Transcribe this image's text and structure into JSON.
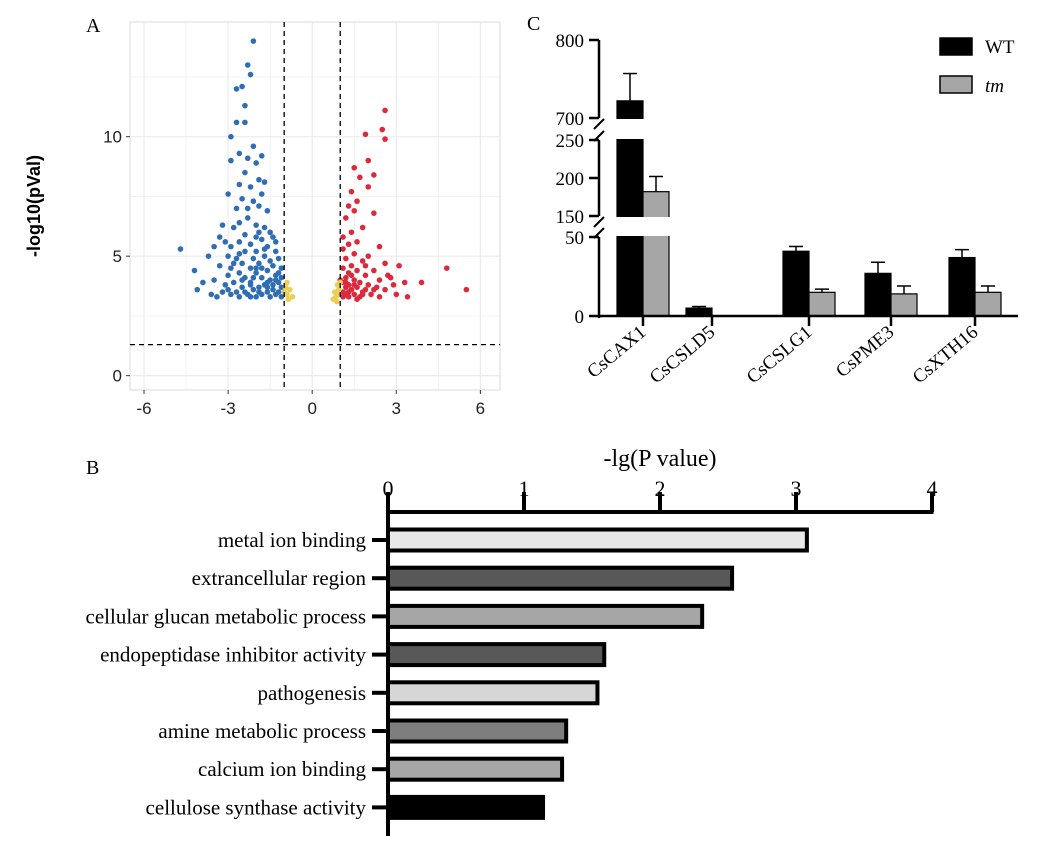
{
  "chart_data": [
    {
      "panel": "A",
      "type": "scatter",
      "panel_label": "A",
      "title": "",
      "xlabel": "",
      "ylabel": "-log10(pVal)",
      "xlim": [
        -6.5,
        6.7
      ],
      "ylim": [
        -0.6,
        14.8
      ],
      "xticks": [
        -6,
        -3,
        0,
        3,
        6
      ],
      "yticks": [
        0,
        5,
        10
      ],
      "grid": true,
      "thresholds": {
        "x": [
          -1,
          1
        ],
        "y": [
          1.3
        ]
      },
      "colors": {
        "down": "#2f6eb4",
        "up": "#dc2a3c",
        "ns": "#e9cf56"
      },
      "series": [
        {
          "name": "down",
          "points": [
            [
              -2.1,
              14.0
            ],
            [
              -2.3,
              13.0
            ],
            [
              -2.2,
              12.6
            ],
            [
              -2.5,
              12.1
            ],
            [
              -2.7,
              12.0
            ],
            [
              -2.4,
              11.3
            ],
            [
              -2.7,
              10.6
            ],
            [
              -2.4,
              10.6
            ],
            [
              -2.9,
              10.0
            ],
            [
              -2.1,
              9.6
            ],
            [
              -2.6,
              9.3
            ],
            [
              -2.3,
              9.1
            ],
            [
              -1.8,
              9.2
            ],
            [
              -2.9,
              9.0
            ],
            [
              -2.0,
              8.9
            ],
            [
              -2.4,
              8.5
            ],
            [
              -1.9,
              8.2
            ],
            [
              -2.6,
              8.0
            ],
            [
              -2.2,
              7.9
            ],
            [
              -1.7,
              8.1
            ],
            [
              -3.0,
              7.6
            ],
            [
              -2.5,
              7.4
            ],
            [
              -2.1,
              7.3
            ],
            [
              -1.8,
              7.6
            ],
            [
              -2.7,
              7.0
            ],
            [
              -2.3,
              7.0
            ],
            [
              -1.9,
              7.1
            ],
            [
              -1.6,
              6.9
            ],
            [
              -2.6,
              6.4
            ],
            [
              -2.0,
              6.3
            ],
            [
              -1.7,
              6.2
            ],
            [
              -3.2,
              6.3
            ],
            [
              -2.8,
              6.2
            ],
            [
              -1.5,
              6.0
            ],
            [
              -2.4,
              5.9
            ],
            [
              -2.0,
              5.8
            ],
            [
              -1.8,
              5.7
            ],
            [
              -1.4,
              5.8
            ],
            [
              -3.1,
              5.6
            ],
            [
              -2.6,
              5.6
            ],
            [
              -2.2,
              5.5
            ],
            [
              -1.6,
              5.4
            ],
            [
              -3.5,
              5.4
            ],
            [
              -2.9,
              5.4
            ],
            [
              -4.7,
              5.3
            ],
            [
              -2.4,
              5.2
            ],
            [
              -2.0,
              5.2
            ],
            [
              -1.3,
              5.2
            ],
            [
              -3.7,
              5.0
            ],
            [
              -3.0,
              5.0
            ],
            [
              -2.7,
              4.9
            ],
            [
              -2.1,
              4.9
            ],
            [
              -1.7,
              5.0
            ],
            [
              -1.2,
              4.9
            ],
            [
              -2.5,
              4.7
            ],
            [
              -1.9,
              4.7
            ],
            [
              -1.4,
              4.6
            ],
            [
              -3.3,
              4.6
            ],
            [
              -2.9,
              4.5
            ],
            [
              -2.2,
              4.5
            ],
            [
              -1.6,
              4.4
            ],
            [
              -1.1,
              4.5
            ],
            [
              -4.2,
              4.4
            ],
            [
              -2.6,
              4.3
            ],
            [
              -2.0,
              4.3
            ],
            [
              -1.3,
              4.2
            ],
            [
              -3.0,
              4.2
            ],
            [
              -1.8,
              4.1
            ],
            [
              -2.4,
              4.1
            ],
            [
              -1.5,
              4.0
            ],
            [
              -3.5,
              4.0
            ],
            [
              -2.8,
              3.9
            ],
            [
              -2.2,
              3.9
            ],
            [
              -1.2,
              3.9
            ],
            [
              -3.1,
              3.8
            ],
            [
              -1.7,
              3.8
            ],
            [
              -2.5,
              3.7
            ],
            [
              -1.9,
              3.7
            ],
            [
              -3.9,
              3.9
            ],
            [
              -2.1,
              3.6
            ],
            [
              -1.4,
              3.6
            ],
            [
              -2.7,
              3.5
            ],
            [
              -1.6,
              3.5
            ],
            [
              -3.2,
              3.5
            ],
            [
              -1.3,
              3.4
            ],
            [
              -4.1,
              3.6
            ],
            [
              -2.3,
              3.4
            ],
            [
              -1.8,
              3.4
            ],
            [
              -2.9,
              3.4
            ],
            [
              -3.6,
              3.4
            ],
            [
              -2.0,
              3.3
            ],
            [
              -1.5,
              3.3
            ],
            [
              -3.4,
              3.3
            ],
            [
              -2.6,
              3.3
            ],
            [
              -1.1,
              3.3
            ],
            [
              -2.2,
              3.8
            ],
            [
              -1.6,
              3.9
            ],
            [
              -2.8,
              4.7
            ],
            [
              -3.3,
              5.8
            ],
            [
              -2.3,
              6.6
            ],
            [
              -1.9,
              6.0
            ],
            [
              -1.3,
              5.6
            ],
            [
              -1.5,
              4.8
            ],
            [
              -1.2,
              4.3
            ],
            [
              -1.1,
              3.7
            ],
            [
              -2.4,
              3.5
            ],
            [
              -2.0,
              4.5
            ],
            [
              -2.6,
              5.1
            ],
            [
              -1.7,
              5.3
            ],
            [
              -1.4,
              3.8
            ],
            [
              -2.1,
              4.1
            ],
            [
              -1.9,
              3.5
            ],
            [
              -2.5,
              4.0
            ],
            [
              -1.2,
              3.5
            ],
            [
              -1.8,
              4.5
            ],
            [
              -3.0,
              3.6
            ],
            [
              -2.2,
              3.3
            ],
            [
              -1.6,
              3.7
            ],
            [
              -1.3,
              4.0
            ],
            [
              -1.1,
              4.1
            ]
          ]
        },
        {
          "name": "up",
          "points": [
            [
              2.6,
              11.1
            ],
            [
              2.5,
              10.3
            ],
            [
              2.6,
              9.9
            ],
            [
              1.9,
              10.1
            ],
            [
              2.0,
              9.0
            ],
            [
              1.5,
              8.7
            ],
            [
              1.7,
              8.3
            ],
            [
              2.2,
              8.4
            ],
            [
              2.0,
              7.9
            ],
            [
              1.4,
              7.7
            ],
            [
              1.6,
              7.3
            ],
            [
              1.3,
              7.1
            ],
            [
              1.5,
              6.9
            ],
            [
              2.2,
              6.8
            ],
            [
              1.2,
              6.6
            ],
            [
              1.8,
              6.2
            ],
            [
              1.4,
              6.0
            ],
            [
              1.1,
              5.8
            ],
            [
              1.6,
              5.6
            ],
            [
              1.3,
              5.5
            ],
            [
              2.4,
              5.4
            ],
            [
              1.1,
              5.3
            ],
            [
              1.5,
              5.1
            ],
            [
              2.0,
              5.0
            ],
            [
              1.2,
              4.9
            ],
            [
              1.8,
              4.8
            ],
            [
              2.6,
              4.7
            ],
            [
              1.4,
              4.6
            ],
            [
              3.1,
              4.6
            ],
            [
              1.1,
              4.5
            ],
            [
              1.6,
              4.4
            ],
            [
              2.2,
              4.4
            ],
            [
              1.3,
              4.3
            ],
            [
              1.9,
              4.2
            ],
            [
              2.7,
              4.2
            ],
            [
              1.2,
              4.1
            ],
            [
              1.5,
              4.0
            ],
            [
              2.4,
              4.0
            ],
            [
              1.1,
              3.9
            ],
            [
              1.7,
              3.9
            ],
            [
              3.3,
              3.9
            ],
            [
              3.9,
              3.9
            ],
            [
              1.3,
              3.8
            ],
            [
              2.0,
              3.8
            ],
            [
              2.9,
              3.8
            ],
            [
              1.2,
              3.7
            ],
            [
              1.6,
              3.7
            ],
            [
              2.3,
              3.7
            ],
            [
              1.4,
              3.6
            ],
            [
              1.9,
              3.6
            ],
            [
              2.6,
              3.6
            ],
            [
              1.1,
              3.5
            ],
            [
              1.8,
              3.5
            ],
            [
              1.2,
              3.4
            ],
            [
              1.5,
              3.4
            ],
            [
              2.1,
              3.4
            ],
            [
              3.0,
              3.4
            ],
            [
              1.3,
              3.3
            ],
            [
              1.7,
              3.3
            ],
            [
              2.4,
              3.3
            ],
            [
              1.1,
              3.3
            ],
            [
              1.6,
              3.2
            ],
            [
              3.4,
              3.3
            ],
            [
              4.8,
              4.5
            ],
            [
              5.5,
              3.6
            ],
            [
              1.4,
              4.2
            ],
            [
              1.2,
              3.9
            ],
            [
              1.9,
              4.6
            ],
            [
              1.0,
              4.0
            ],
            [
              1.5,
              3.8
            ],
            [
              2.2,
              3.6
            ],
            [
              1.3,
              3.5
            ],
            [
              1.8,
              3.4
            ],
            [
              2.8,
              4.1
            ]
          ]
        },
        {
          "name": "ns",
          "points": [
            [
              -0.9,
              3.9
            ],
            [
              -0.8,
              3.6
            ],
            [
              -0.9,
              3.4
            ],
            [
              -0.7,
              3.3
            ],
            [
              -0.85,
              3.2
            ],
            [
              -1.0,
              3.5
            ],
            [
              -0.95,
              3.7
            ],
            [
              0.9,
              3.8
            ],
            [
              0.8,
              3.5
            ],
            [
              0.85,
              3.3
            ],
            [
              0.95,
              3.6
            ],
            [
              0.75,
              3.2
            ],
            [
              0.9,
              3.4
            ],
            [
              1.0,
              3.9
            ],
            [
              0.88,
              3.1
            ]
          ]
        }
      ]
    },
    {
      "panel": "B",
      "type": "bar",
      "orientation": "horizontal",
      "panel_label": "B",
      "title": "",
      "xlabel": "-lg(P value)",
      "xlim": [
        0,
        4
      ],
      "xticks": [
        "0",
        "1",
        "2",
        "3",
        "4"
      ],
      "categories": [
        "metal ion binding",
        "extrancellular region",
        "cellular glucan metabolic process",
        "endopeptidase inhibitor activity",
        "pathogenesis",
        "amine metabolic process",
        "calcium ion binding",
        "cellulose synthase activity"
      ],
      "values": [
        3.08,
        2.53,
        2.31,
        1.59,
        1.54,
        1.31,
        1.28,
        1.14
      ],
      "bar_colors": [
        "#e8e8e8",
        "#585858",
        "#a6a6a6",
        "#585858",
        "#d6d6d6",
        "#7e7e7e",
        "#a6a6a6",
        "#000000"
      ]
    },
    {
      "panel": "C",
      "type": "bar",
      "panel_label": "C",
      "title": "",
      "xlabel": "",
      "ylabel": "",
      "axis_breaks": [
        [
          0,
          50
        ],
        [
          150,
          250
        ],
        [
          700,
          800
        ]
      ],
      "yticks": [
        0,
        50,
        150,
        200,
        250,
        700,
        800
      ],
      "categories": [
        "CsCAX1",
        "CsCSLD5",
        "CsCSLG1",
        "CsPME3",
        "CsXTH16"
      ],
      "series": [
        {
          "name": "WT",
          "values": [
            722,
            5,
            41,
            27,
            37
          ],
          "errors": [
            35,
            1,
            3,
            7,
            5
          ],
          "color": "#000000"
        },
        {
          "name": "tm",
          "values": [
            182,
            0,
            15,
            14,
            15
          ],
          "errors": [
            20,
            0,
            2,
            5,
            4
          ],
          "color": "#a6a6a6"
        }
      ],
      "legend": {
        "position": "top-right",
        "entries": [
          "WT",
          "tm"
        ]
      }
    }
  ]
}
